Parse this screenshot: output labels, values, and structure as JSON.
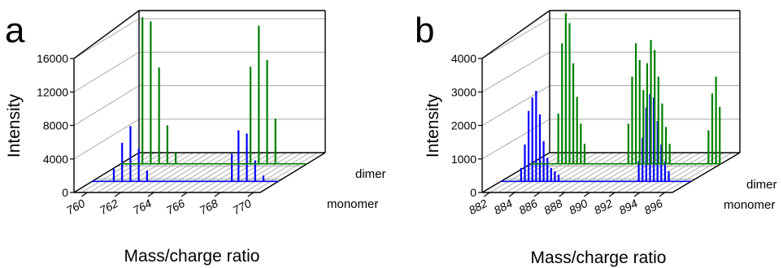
{
  "chart_data": [
    {
      "type": "line",
      "panel_label": "a",
      "xlabel": "Mass/charge ratio",
      "ylabel": "Intensity",
      "x_ticks": [
        "760",
        "762",
        "764",
        "766",
        "768",
        "770"
      ],
      "y_ticks": [
        "0",
        "4000",
        "8000",
        "12000",
        "16000"
      ],
      "xlim": [
        759.2,
        770.4
      ],
      "ylim": [
        0,
        16000
      ],
      "series_axis_labels": [
        "monomer",
        "dimer"
      ],
      "grid": true,
      "colors": {
        "monomer": "#0000ff",
        "dimer": "#008000"
      },
      "series": [
        {
          "name": "monomer",
          "color": "#0000ff",
          "x": [
            760.5,
            761.0,
            761.5,
            762.0,
            762.5,
            767.6,
            768.0,
            768.5,
            769.0,
            769.5
          ],
          "y": [
            1500,
            4600,
            6600,
            3900,
            1300,
            3300,
            6100,
            5700,
            2500,
            700
          ]
        },
        {
          "name": "dimer",
          "color": "#008000",
          "x": [
            760.5,
            761.0,
            761.5,
            762.0,
            762.5,
            767.0,
            767.5,
            768.0,
            768.5
          ],
          "y": [
            17500,
            17000,
            11500,
            4600,
            1300,
            11600,
            16500,
            12400,
            5400
          ]
        }
      ]
    },
    {
      "type": "line",
      "panel_label": "b",
      "xlabel": "Mass/charge ratio",
      "ylabel": "Intensity",
      "x_ticks": [
        "882",
        "884",
        "886",
        "888",
        "890",
        "892",
        "894",
        "896"
      ],
      "y_ticks": [
        "0",
        "1000",
        "2000",
        "3000",
        "4000"
      ],
      "xlim": [
        881.4,
        896.6
      ],
      "ylim": [
        0,
        4000
      ],
      "series_axis_labels": [
        "monomer",
        "dimer"
      ],
      "grid": true,
      "colors": {
        "monomer": "#0000ff",
        "dimer": "#008000"
      },
      "series": [
        {
          "name": "monomer",
          "color": "#0000ff",
          "x": [
            883.0,
            883.3,
            883.6,
            883.9,
            884.2,
            884.5,
            884.8,
            885.1,
            885.4,
            885.7,
            886.0,
            892.4,
            892.7,
            893.0,
            893.3,
            893.6,
            893.9,
            894.2,
            894.5,
            894.8
          ],
          "y": [
            400,
            1100,
            2100,
            2500,
            2700,
            2000,
            1200,
            700,
            400,
            300,
            200,
            600,
            1300,
            2200,
            2600,
            2500,
            1800,
            1100,
            600,
            300
          ]
        },
        {
          "name": "dimer",
          "color": "#008000",
          "x": [
            883.6,
            883.9,
            884.2,
            884.5,
            884.8,
            885.1,
            885.4,
            885.7,
            889.2,
            889.5,
            889.8,
            890.1,
            890.4,
            890.7,
            891.0,
            891.3,
            891.6,
            891.9,
            892.2,
            892.5,
            895.6,
            895.9,
            896.2,
            896.5
          ],
          "y": [
            1500,
            3600,
            4500,
            4200,
            3000,
            2000,
            1200,
            600,
            1200,
            2600,
            3600,
            3100,
            2200,
            3000,
            3700,
            3400,
            2600,
            1800,
            1100,
            600,
            1000,
            2100,
            2600,
            1700
          ]
        }
      ]
    }
  ]
}
